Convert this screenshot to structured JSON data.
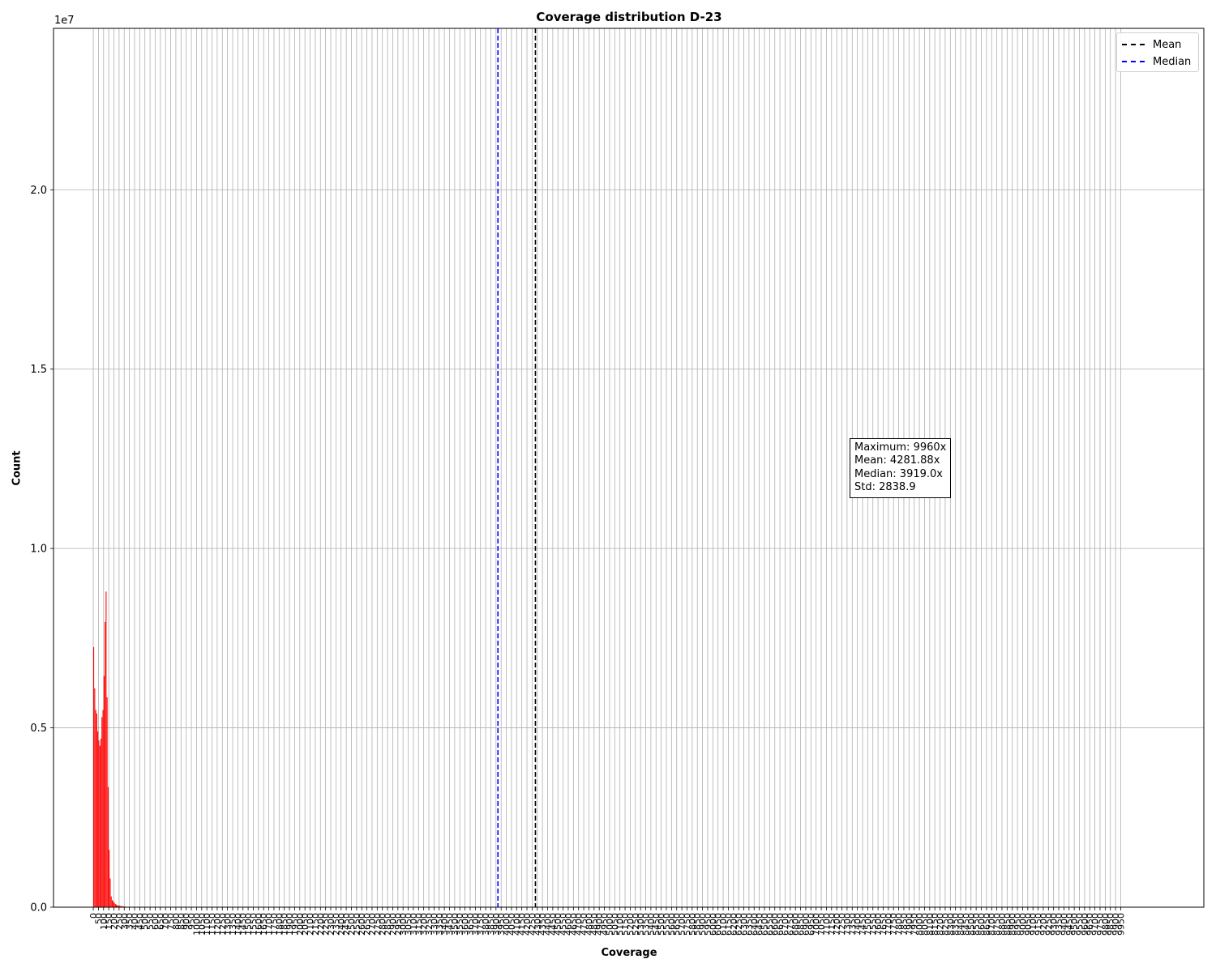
{
  "chart_data": {
    "type": "bar",
    "title": "Coverage distribution D-23",
    "xlabel": "Coverage",
    "ylabel": "Count",
    "y_offset_label": "1e7",
    "ylim": [
      0,
      24500000
    ],
    "y_ticks": [
      0,
      5000000,
      10000000,
      15000000,
      20000000
    ],
    "y_tick_labels": [
      "0.0",
      "0.5",
      "1.0",
      "1.5",
      "2.0"
    ],
    "x_tick_step": 50,
    "x_tick_max": 9950,
    "grid": true,
    "bar_color": "#ff0000",
    "bars": {
      "x": [
        0,
        10,
        20,
        30,
        40,
        50,
        60,
        70,
        80,
        90,
        100,
        110,
        120,
        130,
        140,
        150,
        160,
        170,
        180,
        190,
        200,
        210,
        220,
        230,
        240,
        250,
        260,
        270,
        280,
        290,
        300,
        320,
        340,
        360
      ],
      "values": [
        7250000,
        6100000,
        5500000,
        5400000,
        4900000,
        4650000,
        4500000,
        4700000,
        5300000,
        5500000,
        6450000,
        7950000,
        8800000,
        5850000,
        3350000,
        1600000,
        800000,
        300000,
        200000,
        160000,
        120000,
        90000,
        70000,
        55000,
        45000,
        40000,
        35000,
        30000,
        25000,
        20000,
        15000,
        10000,
        8000,
        5000
      ]
    },
    "lines": [
      {
        "name": "Mean",
        "x": 4281.88,
        "color": "#000000",
        "style": "dashed"
      },
      {
        "name": "Median",
        "x": 3919.0,
        "color": "#0000ff",
        "style": "dashed"
      }
    ],
    "legend_position": "top-right"
  },
  "stats": {
    "maximum": "Maximum: 9960x",
    "mean": "Mean: 4281.88x",
    "median": "Median: 3919.0x",
    "std": "Std: 2838.9"
  },
  "legend": {
    "mean": "Mean",
    "median": "Median"
  }
}
